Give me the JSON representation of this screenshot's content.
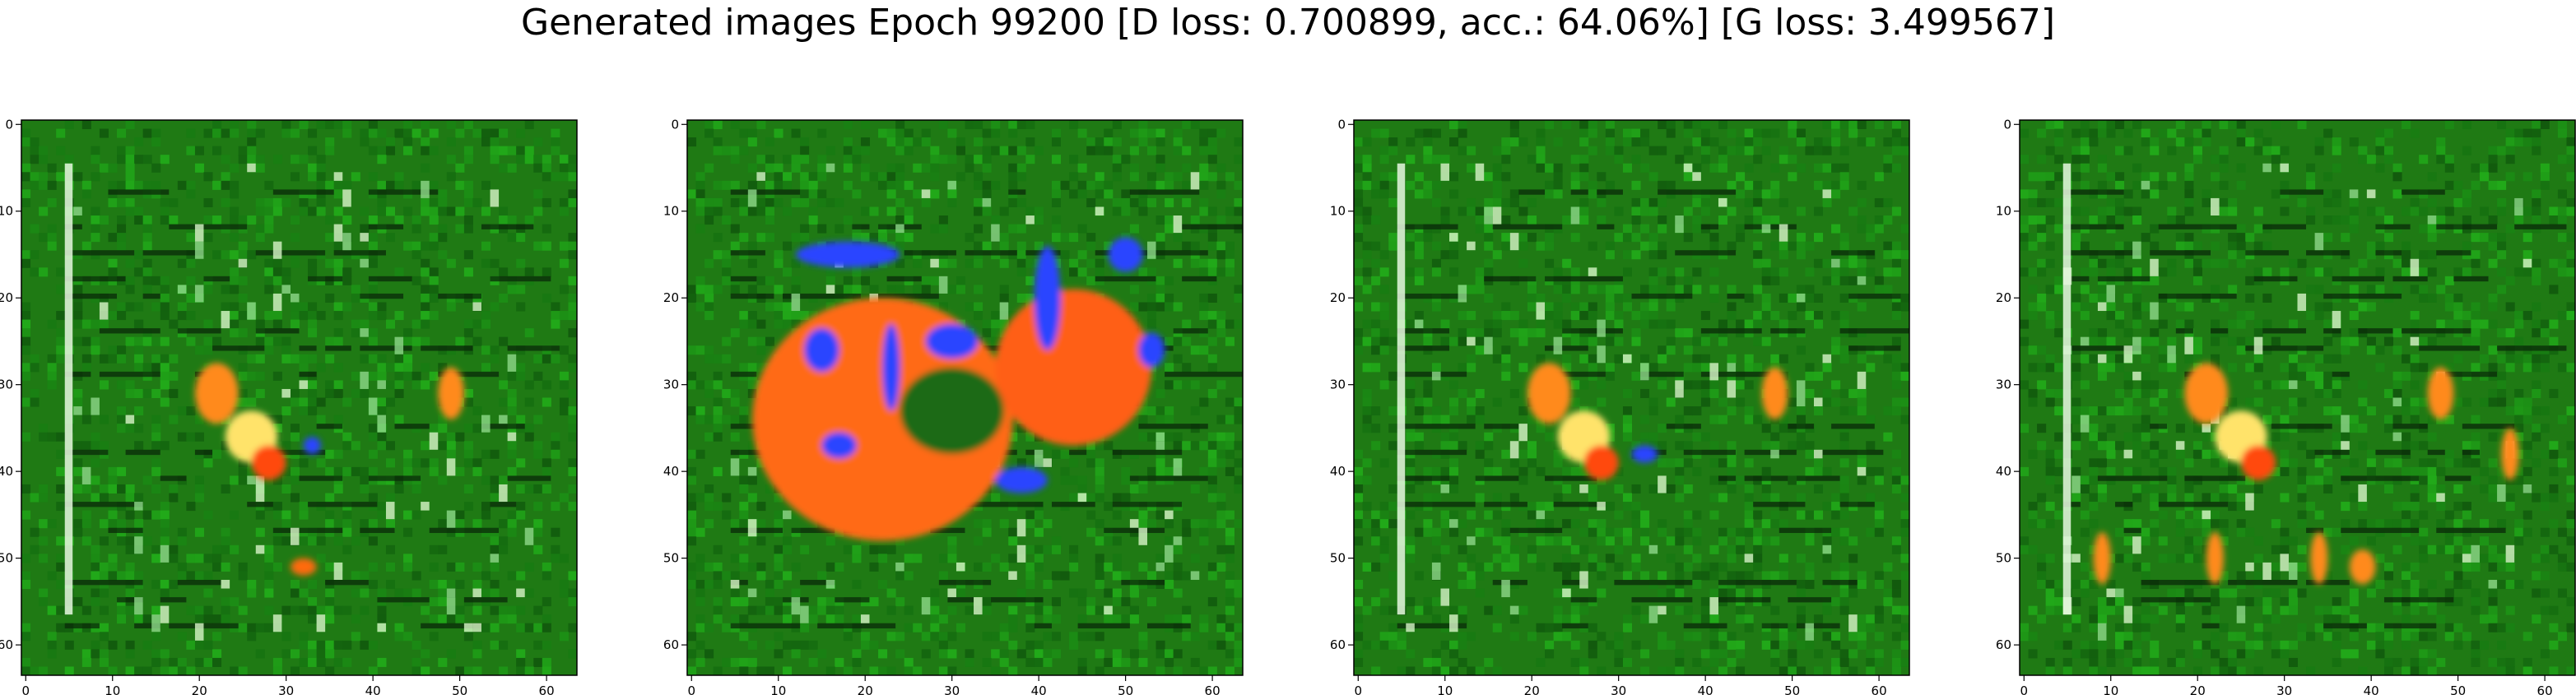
{
  "title": "Generated images Epoch 99200 [D loss: 0.700899, acc.: 64.06%] [G loss: 3.499567]",
  "chart_data": [
    {
      "type": "image",
      "panel": "sample-1",
      "xlim": [
        0,
        63
      ],
      "ylim": [
        63,
        0
      ],
      "xticks": [
        0,
        10,
        20,
        30,
        40,
        50,
        60
      ],
      "yticks": [
        0,
        10,
        20,
        30,
        40,
        50,
        60
      ],
      "xticklabels": [
        "0",
        "10",
        "20",
        "30",
        "40",
        "50",
        "60"
      ],
      "yticklabels": [
        "0",
        "10",
        "20",
        "30",
        "40",
        "50",
        "60"
      ],
      "background_color": "#1f7a14",
      "line_color": "#0a2a08",
      "blobs": [
        {
          "x": 22,
          "y": 31,
          "rx": 2.5,
          "ry": 3.5,
          "color": "#ff8a1a"
        },
        {
          "x": 26,
          "y": 36,
          "rx": 3,
          "ry": 3,
          "color": "#ffe36b"
        },
        {
          "x": 28,
          "y": 39,
          "rx": 2,
          "ry": 2,
          "color": "#ff4a10"
        },
        {
          "x": 49,
          "y": 31,
          "rx": 1.5,
          "ry": 3,
          "color": "#ff8a1a"
        },
        {
          "x": 33,
          "y": 37,
          "rx": 1,
          "ry": 1,
          "color": "#2a44ff"
        },
        {
          "x": 32,
          "y": 51,
          "rx": 1.5,
          "ry": 1,
          "color": "#ff6a10"
        }
      ]
    },
    {
      "type": "image",
      "panel": "sample-2",
      "xlim": [
        0,
        63
      ],
      "ylim": [
        63,
        0
      ],
      "xticks": [
        0,
        10,
        20,
        30,
        40,
        50,
        60
      ],
      "yticks": [
        0,
        10,
        20,
        30,
        40,
        50,
        60
      ],
      "xticklabels": [
        "0",
        "10",
        "20",
        "30",
        "40",
        "50",
        "60"
      ],
      "yticklabels": [
        "0",
        "10",
        "20",
        "30",
        "40",
        "50",
        "60"
      ],
      "background_color": "#1f7a14",
      "line_color": "#0a2a08",
      "blobs": [
        {
          "x": 22,
          "y": 34,
          "rx": 15,
          "ry": 14,
          "color": "#ff6a14"
        },
        {
          "x": 44,
          "y": 28,
          "rx": 9,
          "ry": 9,
          "color": "#ff5e12"
        },
        {
          "x": 30,
          "y": 33,
          "rx": 6,
          "ry": 5,
          "color": "#1a6a14"
        },
        {
          "x": 18,
          "y": 15,
          "rx": 6,
          "ry": 1.5,
          "color": "#2a44ff"
        },
        {
          "x": 15,
          "y": 26,
          "rx": 2,
          "ry": 2.5,
          "color": "#2a44ff"
        },
        {
          "x": 23,
          "y": 28,
          "rx": 1,
          "ry": 5,
          "color": "#2a44ff"
        },
        {
          "x": 30,
          "y": 25,
          "rx": 3,
          "ry": 2,
          "color": "#2a44ff"
        },
        {
          "x": 41,
          "y": 20,
          "rx": 1.5,
          "ry": 6,
          "color": "#2a44ff"
        },
        {
          "x": 50,
          "y": 15,
          "rx": 2,
          "ry": 2,
          "color": "#2a44ff"
        },
        {
          "x": 53,
          "y": 26,
          "rx": 1.5,
          "ry": 2,
          "color": "#2a44ff"
        },
        {
          "x": 17,
          "y": 37,
          "rx": 2,
          "ry": 1.5,
          "color": "#2a44ff"
        },
        {
          "x": 38,
          "y": 41,
          "rx": 3,
          "ry": 1.5,
          "color": "#2a44ff"
        }
      ]
    },
    {
      "type": "image",
      "panel": "sample-3",
      "xlim": [
        0,
        63
      ],
      "ylim": [
        63,
        0
      ],
      "xticks": [
        0,
        10,
        20,
        30,
        40,
        50,
        60
      ],
      "yticks": [
        0,
        10,
        20,
        30,
        40,
        50,
        60
      ],
      "xticklabels": [
        "0",
        "10",
        "20",
        "30",
        "40",
        "50",
        "60"
      ],
      "yticklabels": [
        "0",
        "10",
        "20",
        "30",
        "40",
        "50",
        "60"
      ],
      "background_color": "#1f7a14",
      "line_color": "#0a2a08",
      "blobs": [
        {
          "x": 22,
          "y": 31,
          "rx": 2.5,
          "ry": 3.5,
          "color": "#ff8a1a"
        },
        {
          "x": 26,
          "y": 36,
          "rx": 3,
          "ry": 3,
          "color": "#ffe36b"
        },
        {
          "x": 28,
          "y": 39,
          "rx": 2,
          "ry": 2,
          "color": "#ff4a10"
        },
        {
          "x": 48,
          "y": 31,
          "rx": 1.5,
          "ry": 3,
          "color": "#ff8a1a"
        },
        {
          "x": 33,
          "y": 38,
          "rx": 1.5,
          "ry": 1,
          "color": "#2a44ff"
        }
      ]
    },
    {
      "type": "image",
      "panel": "sample-4",
      "xlim": [
        0,
        63
      ],
      "ylim": [
        63,
        0
      ],
      "xticks": [
        0,
        10,
        20,
        30,
        40,
        50,
        60
      ],
      "yticks": [
        0,
        10,
        20,
        30,
        40,
        50,
        60
      ],
      "xticklabels": [
        "0",
        "10",
        "20",
        "30",
        "40",
        "50",
        "60"
      ],
      "yticklabels": [
        "0",
        "10",
        "20",
        "30",
        "40",
        "50",
        "60"
      ],
      "background_color": "#1f7a14",
      "line_color": "#0a2a08",
      "blobs": [
        {
          "x": 21,
          "y": 31,
          "rx": 2.5,
          "ry": 3.5,
          "color": "#ff8a1a"
        },
        {
          "x": 25,
          "y": 36,
          "rx": 3,
          "ry": 3,
          "color": "#ffe36b"
        },
        {
          "x": 27,
          "y": 39,
          "rx": 2,
          "ry": 2,
          "color": "#ff4a10"
        },
        {
          "x": 48,
          "y": 31,
          "rx": 1.5,
          "ry": 3,
          "color": "#ff8a1a"
        },
        {
          "x": 56,
          "y": 38,
          "rx": 1,
          "ry": 3,
          "color": "#ff8a1a"
        },
        {
          "x": 9,
          "y": 50,
          "rx": 1,
          "ry": 3,
          "color": "#ff8a1a"
        },
        {
          "x": 22,
          "y": 50,
          "rx": 1,
          "ry": 3,
          "color": "#ff8a1a"
        },
        {
          "x": 34,
          "y": 50,
          "rx": 1,
          "ry": 3,
          "color": "#ff8a1a"
        },
        {
          "x": 39,
          "y": 51,
          "rx": 1.5,
          "ry": 2,
          "color": "#ff8a1a"
        }
      ]
    }
  ]
}
